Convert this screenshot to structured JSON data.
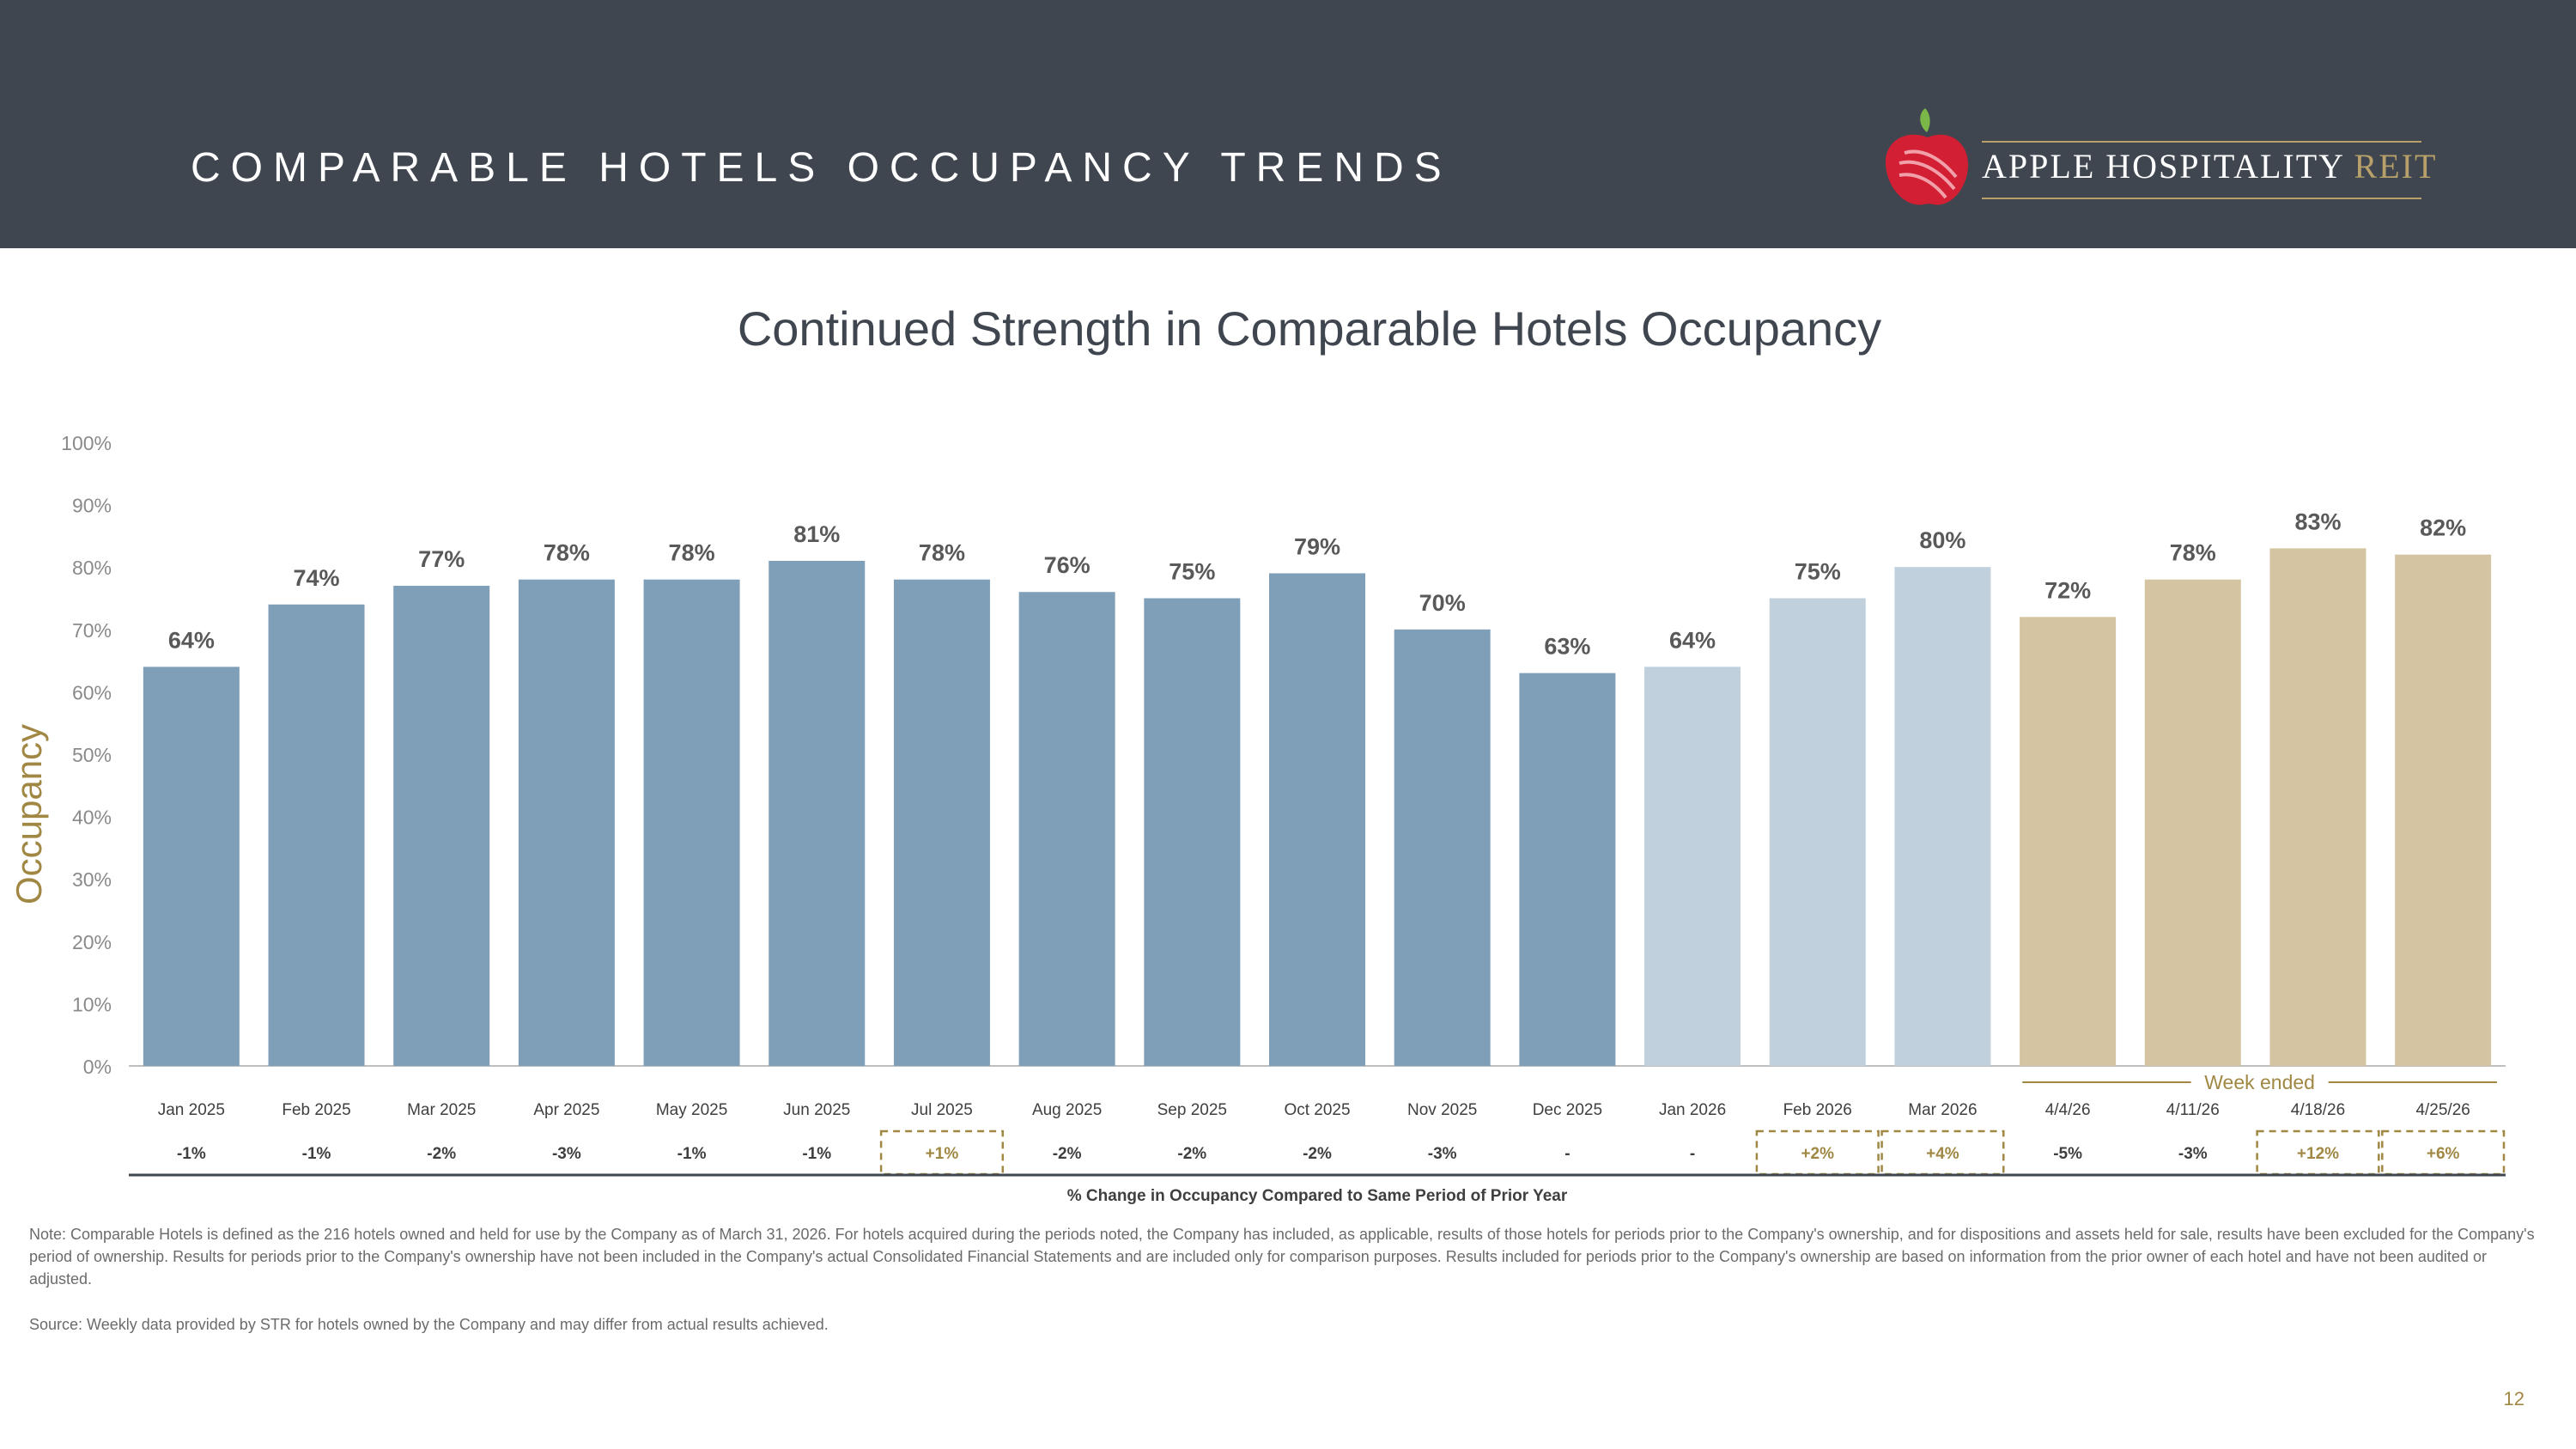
{
  "header": {
    "title": "COMPARABLE HOTELS OCCUPANCY TRENDS",
    "logo_text_main": "APPLE HOSPITALITY ",
    "logo_text_accent": "REIT"
  },
  "colors": {
    "header_bg": "#3f464f",
    "bar_2025": "#7f9fb8",
    "bar_2026": "#c0d0dd",
    "bar_weekly": "#d5c4a1",
    "accent_gold": "#a08844",
    "logo_red": "#d21f34",
    "logo_green": "#7ab648"
  },
  "chart_data": {
    "type": "bar",
    "title": "Continued Strength in Comparable Hotels Occupancy",
    "ylabel": "Occupancy",
    "ylim": [
      0,
      100
    ],
    "yticks": [
      "0%",
      "10%",
      "20%",
      "30%",
      "40%",
      "50%",
      "60%",
      "70%",
      "80%",
      "90%",
      "100%"
    ],
    "categories": [
      "Jan 2025",
      "Feb 2025",
      "Mar 2025",
      "Apr 2025",
      "May 2025",
      "Jun 2025",
      "Jul 2025",
      "Aug 2025",
      "Sep 2025",
      "Oct 2025",
      "Nov 2025",
      "Dec 2025",
      "Jan 2026",
      "Feb 2026",
      "Mar 2026",
      "4/4/26",
      "4/11/26",
      "4/18/26",
      "4/25/26"
    ],
    "values": [
      64,
      74,
      77,
      78,
      78,
      81,
      78,
      76,
      75,
      79,
      70,
      63,
      64,
      75,
      80,
      72,
      78,
      83,
      82
    ],
    "value_labels": [
      "64%",
      "74%",
      "77%",
      "78%",
      "78%",
      "81%",
      "78%",
      "76%",
      "75%",
      "79%",
      "70%",
      "63%",
      "64%",
      "75%",
      "80%",
      "72%",
      "78%",
      "83%",
      "82%"
    ],
    "groups": [
      "2025",
      "2025",
      "2025",
      "2025",
      "2025",
      "2025",
      "2025",
      "2025",
      "2025",
      "2025",
      "2025",
      "2025",
      "2026",
      "2026",
      "2026",
      "week",
      "week",
      "week",
      "week"
    ],
    "change_labels": [
      "-1%",
      "-1%",
      "-2%",
      "-3%",
      "-1%",
      "-1%",
      "+1%",
      "-2%",
      "-2%",
      "-2%",
      "-3%",
      "-",
      "-",
      "+2%",
      "+4%",
      "-5%",
      "-3%",
      "+12%",
      "+6%"
    ],
    "change_highlight": [
      false,
      false,
      false,
      false,
      false,
      false,
      true,
      false,
      false,
      false,
      false,
      false,
      false,
      true,
      true,
      false,
      false,
      true,
      true
    ],
    "week_group_label": "Week ended",
    "change_caption": "% Change in Occupancy Compared to Same Period of Prior Year"
  },
  "footer": {
    "note": "Note: Comparable Hotels is defined as the 216 hotels owned and held for use by the Company as of March 31, 2026. For hotels acquired during the periods noted, the Company has included, as applicable, results of those hotels for periods prior to the Company's ownership, and for dispositions and assets held for sale, results have been excluded for the Company's period of ownership. Results for periods prior to the Company's ownership have not been included in the Company's actual Consolidated Financial Statements and are included only for comparison purposes. Results included for periods prior to the Company's ownership are based on information from the prior owner of each hotel and have not been audited or adjusted.",
    "source": "Source:  Weekly data provided by STR for hotels owned by the Company and may differ from actual results achieved.",
    "page_number": "12"
  }
}
